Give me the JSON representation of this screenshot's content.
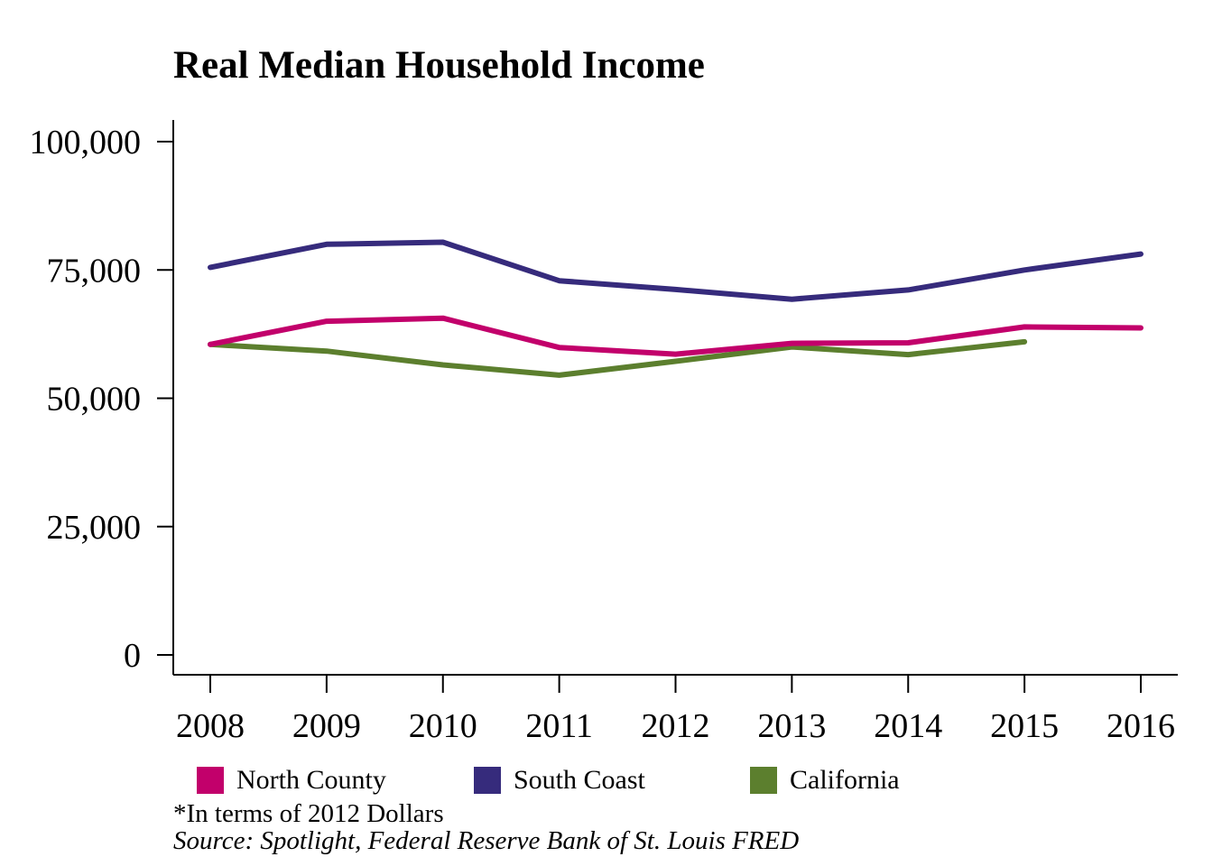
{
  "chart_data": {
    "type": "line",
    "title": "Real Median Household Income",
    "xlabel": "",
    "ylabel": "",
    "x": [
      "2008",
      "2009",
      "2010",
      "2011",
      "2012",
      "2013",
      "2014",
      "2015",
      "2016"
    ],
    "y_ticks": [
      "0",
      "25,000",
      "50,000",
      "75,000",
      "100,000"
    ],
    "y_tick_values": [
      0,
      25000,
      50000,
      75000,
      100000
    ],
    "ylim": [
      0,
      100000
    ],
    "grid": false,
    "legend_position": "bottom",
    "series": [
      {
        "name": "North County",
        "color": "#C2006B",
        "values": [
          60500,
          65000,
          65600,
          59900,
          58600,
          60700,
          60800,
          63900,
          63700
        ]
      },
      {
        "name": "South Coast",
        "color": "#362B7C",
        "values": [
          75500,
          80000,
          80400,
          72900,
          71200,
          69300,
          71100,
          75000,
          78100
        ]
      },
      {
        "name": "California",
        "color": "#5C7F2E",
        "values": [
          60500,
          59200,
          56500,
          54500,
          57200,
          60000,
          58500,
          61000,
          null
        ]
      }
    ]
  },
  "footnote": "*In terms of 2012 Dollars",
  "source": "Source: Spotlight, Federal Reserve Bank of St. Louis FRED"
}
